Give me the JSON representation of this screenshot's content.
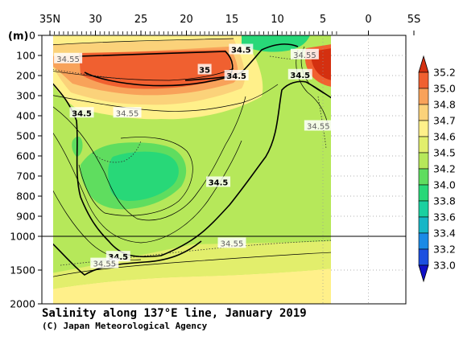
{
  "chart_data": {
    "type": "heatmap",
    "title": "Salinity along 137°E line, January 2019",
    "credit": "(C) Japan Meteorological Agency",
    "ylabel": "(m)",
    "x_ticks": [
      "35N",
      "30",
      "25",
      "20",
      "15",
      "10",
      "5",
      "0",
      "5S"
    ],
    "x_tick_values": [
      35,
      30,
      25,
      20,
      15,
      10,
      5,
      0,
      -5
    ],
    "xlim": [
      35,
      -5
    ],
    "y_ticks_upper": [
      "0",
      "100",
      "200",
      "300",
      "400",
      "500",
      "600",
      "700",
      "800",
      "900",
      "1000"
    ],
    "y_ticks_lower": [
      "1500",
      "2000"
    ],
    "y_upper_range": [
      0,
      1000
    ],
    "y_lower_range": [
      1000,
      2000
    ],
    "data_latitude_range": [
      34.5,
      3.5
    ],
    "colorbar": {
      "levels": [
        "33.0",
        "33.2",
        "33.4",
        "33.6",
        "33.8",
        "34.0",
        "34.2",
        "34.5",
        "34.6",
        "34.7",
        "34.8",
        "35.0",
        "35.2"
      ],
      "colors": [
        "#1010c8",
        "#1c4fe0",
        "#1a8ae6",
        "#17b6c6",
        "#1ad0a0",
        "#28d878",
        "#5fdd5f",
        "#b6e85a",
        "#e2ee6c",
        "#fff08a",
        "#fbd27a",
        "#f8a25a",
        "#f06030",
        "#d43010"
      ],
      "extend": "both"
    },
    "contour_labels": [
      {
        "text": "34.5",
        "lat": 31.5,
        "depth": 385
      },
      {
        "text": "34.5",
        "lat": 16.5,
        "depth": 730
      },
      {
        "text": "34.5",
        "lat": 27.5,
        "depth": 1300
      },
      {
        "text": "34.5",
        "lat": 14.5,
        "depth": 200
      },
      {
        "text": "34.5",
        "lat": 7.5,
        "depth": 195
      },
      {
        "text": "34.5",
        "lat": 14.0,
        "depth": 70
      },
      {
        "text": "35",
        "lat": 18.0,
        "depth": 170
      }
    ],
    "dotted_labels": [
      {
        "text": "34.55",
        "lat": 33.0,
        "depth": 115
      },
      {
        "text": "34.55",
        "lat": 26.5,
        "depth": 385
      },
      {
        "text": "34.55",
        "lat": 7.0,
        "depth": 95
      },
      {
        "text": "34.55",
        "lat": 5.5,
        "depth": 450
      },
      {
        "text": "34.55",
        "lat": 15.0,
        "depth": 1100
      },
      {
        "text": "34.55",
        "lat": 29.0,
        "depth": 1400
      }
    ]
  }
}
